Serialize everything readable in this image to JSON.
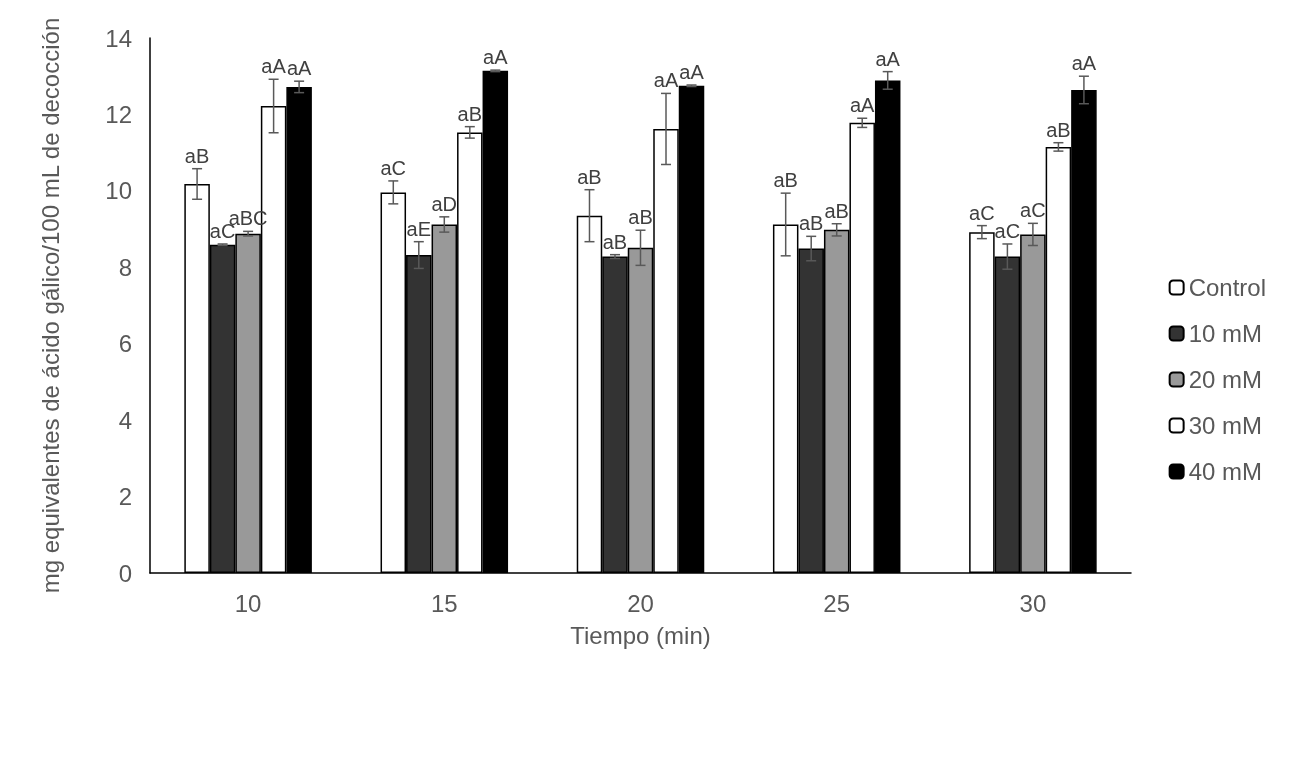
{
  "chart_data": {
    "type": "bar",
    "xlabel": "Tiempo (min)",
    "ylabel": "mg equivalentes de ácido gálico/100 mL de decocción",
    "categories": [
      "10",
      "15",
      "20",
      "25",
      "30"
    ],
    "ylim": [
      0,
      14
    ],
    "yticks": [
      0,
      2,
      4,
      6,
      8,
      10,
      12,
      14
    ],
    "grid": false,
    "legend": "right",
    "series": [
      {
        "name": "Control",
        "color": "#ffffff",
        "values": [
          10.18,
          9.96,
          9.35,
          9.12,
          8.92
        ],
        "errors": [
          0.4,
          0.3,
          0.68,
          0.82,
          0.17
        ],
        "value_labels": [
          "aB",
          "aC",
          "aB",
          "aB",
          "aC"
        ]
      },
      {
        "name": "10 mM",
        "color": "#333333",
        "values": [
          8.59,
          8.32,
          8.28,
          8.49,
          8.28
        ],
        "errors": [
          0.02,
          0.35,
          0.05,
          0.32,
          0.33
        ],
        "value_labels": [
          "aC",
          "aE",
          "aB",
          "aB",
          "aC"
        ]
      },
      {
        "name": "20 mM",
        "color": "#999999",
        "values": [
          8.88,
          9.12,
          8.51,
          8.98,
          8.86
        ],
        "errors": [
          0.06,
          0.2,
          0.46,
          0.16,
          0.29
        ],
        "value_labels": [
          "aBC",
          "aD",
          "aB",
          "aB",
          "aC"
        ]
      },
      {
        "name": "30 mM",
        "color": "#ffffff",
        "values": [
          12.22,
          11.53,
          11.62,
          11.78,
          11.15
        ],
        "errors": [
          0.7,
          0.15,
          0.93,
          0.12,
          0.11
        ],
        "value_labels": [
          "aA",
          "aB",
          "aA",
          "aA",
          "aB"
        ]
      },
      {
        "name": "40 mM",
        "color": "#000000",
        "values": [
          12.72,
          13.14,
          12.75,
          12.89,
          12.64
        ],
        "errors": [
          0.15,
          0.02,
          0.02,
          0.23,
          0.36
        ],
        "value_labels": [
          "aA",
          "aA",
          "aA",
          "aA",
          "aA"
        ]
      }
    ]
  }
}
